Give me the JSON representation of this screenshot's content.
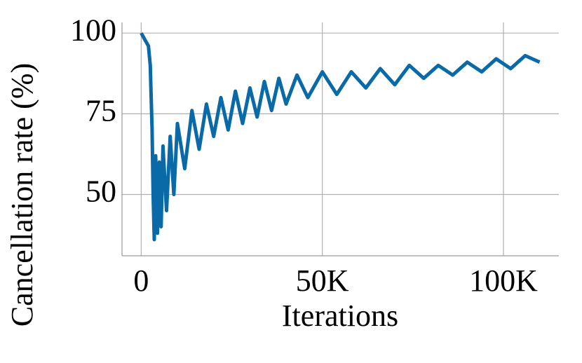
{
  "chart_data": {
    "type": "line",
    "xlabel": "Iterations",
    "ylabel": "Cancellation rate (%)",
    "x": [
      0,
      500,
      1000,
      1500,
      2000,
      2500,
      3000,
      3300,
      3600,
      4000,
      4500,
      5000,
      5500,
      6000,
      7000,
      8000,
      9000,
      10000,
      12000,
      14000,
      16000,
      18000,
      20000,
      22000,
      24000,
      26000,
      28000,
      30000,
      32000,
      34000,
      36000,
      38000,
      40000,
      43000,
      46000,
      50000,
      54000,
      58000,
      62000,
      66000,
      70000,
      74000,
      78000,
      82000,
      86000,
      90000,
      94000,
      98000,
      102000,
      106000,
      110000
    ],
    "series": [
      {
        "color": "#0a6aa8",
        "values": [
          100,
          99,
          98,
          97,
          96,
          90,
          70,
          50,
          36,
          62,
          38,
          60,
          40,
          65,
          45,
          68,
          50,
          72,
          58,
          76,
          64,
          78,
          68,
          80,
          70,
          82,
          72,
          83,
          74,
          85,
          76,
          86,
          78,
          87,
          80,
          88,
          81,
          88,
          83,
          89,
          84,
          90,
          86,
          90,
          87,
          91,
          88,
          92,
          89,
          93,
          91
        ]
      }
    ],
    "xlim": [
      -5300,
      115300
    ],
    "ylim": [
      31,
      103.3
    ],
    "xticks": [
      0,
      {
        "value": 50000,
        "label": "50K"
      },
      {
        "value": 100000,
        "label": "100K"
      }
    ],
    "yticks": [
      50,
      75,
      100
    ],
    "grid": true
  }
}
